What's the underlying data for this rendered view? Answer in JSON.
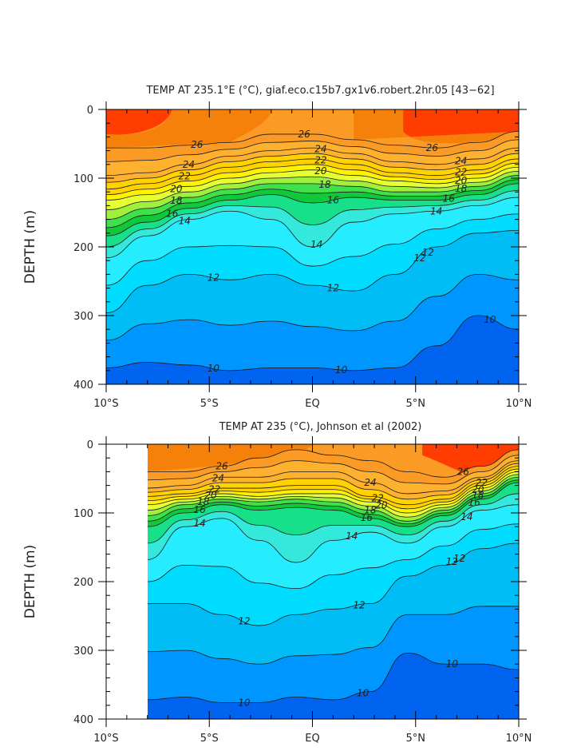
{
  "chart_data": [
    {
      "type": "contour",
      "title": "TEMP AT 235.1°E (°C), giaf.eco.c15b7.gx1v6.robert.2hr.05 [43−62]",
      "ylabel": "DEPTH (m)",
      "xlabel": "",
      "x_ticks": [
        "10°S",
        "5°S",
        "EQ",
        "5°N",
        "10°N"
      ],
      "x_range": [
        -10,
        10
      ],
      "y_ticks": [
        "0",
        "100",
        "200",
        "300",
        "400"
      ],
      "y_range": [
        0,
        400
      ],
      "contour_levels": [
        10,
        12,
        14,
        16,
        18,
        20,
        22,
        24,
        26
      ],
      "contour_labels": [
        "26",
        "24",
        "22",
        "20",
        "18",
        "16",
        "14",
        "12",
        "10",
        "26",
        "24",
        "22",
        "20",
        "18",
        "16",
        "14",
        "12",
        "12",
        "10",
        "26",
        "24",
        "22",
        "20",
        "18",
        "16",
        "14",
        "12",
        "10"
      ]
    },
    {
      "type": "contour",
      "title": "TEMP AT 235 (°C), Johnson et al (2002)",
      "ylabel": "DEPTH (m)",
      "xlabel": "",
      "x_ticks": [
        "10°S",
        "5°S",
        "EQ",
        "5°N",
        "10°N"
      ],
      "x_range": [
        -10,
        10
      ],
      "y_ticks": [
        "0",
        "100",
        "200",
        "300",
        "400"
      ],
      "y_range": [
        0,
        400
      ],
      "data_x_start": -8,
      "contour_levels": [
        10,
        12,
        14,
        16,
        18,
        20,
        22,
        24,
        26
      ],
      "contour_labels": [
        "26",
        "24",
        "22",
        "20",
        "18",
        "16",
        "14",
        "12",
        "10",
        "24",
        "22",
        "20",
        "18",
        "16",
        "14",
        "12",
        "12",
        "10",
        "26",
        "22",
        "20",
        "18",
        "16",
        "14",
        "12",
        "10"
      ]
    }
  ],
  "colors": {
    "c28": "#ff3d00",
    "c26": "#f5800a",
    "c24": "#fb9a24",
    "c22": "#fdb12e",
    "c21": "#ffd200",
    "c20": "#fff200",
    "c19": "#e6ff33",
    "c18": "#9ff03c",
    "c17": "#3fe04a",
    "c16": "#10c83a",
    "c15": "#18e08a",
    "c14": "#34e8dc",
    "c13": "#26ecff",
    "c12": "#00dcff",
    "c11": "#00bef5",
    "c10": "#0096ff",
    "c9": "#0064f0",
    "c8": "#0046dc"
  }
}
